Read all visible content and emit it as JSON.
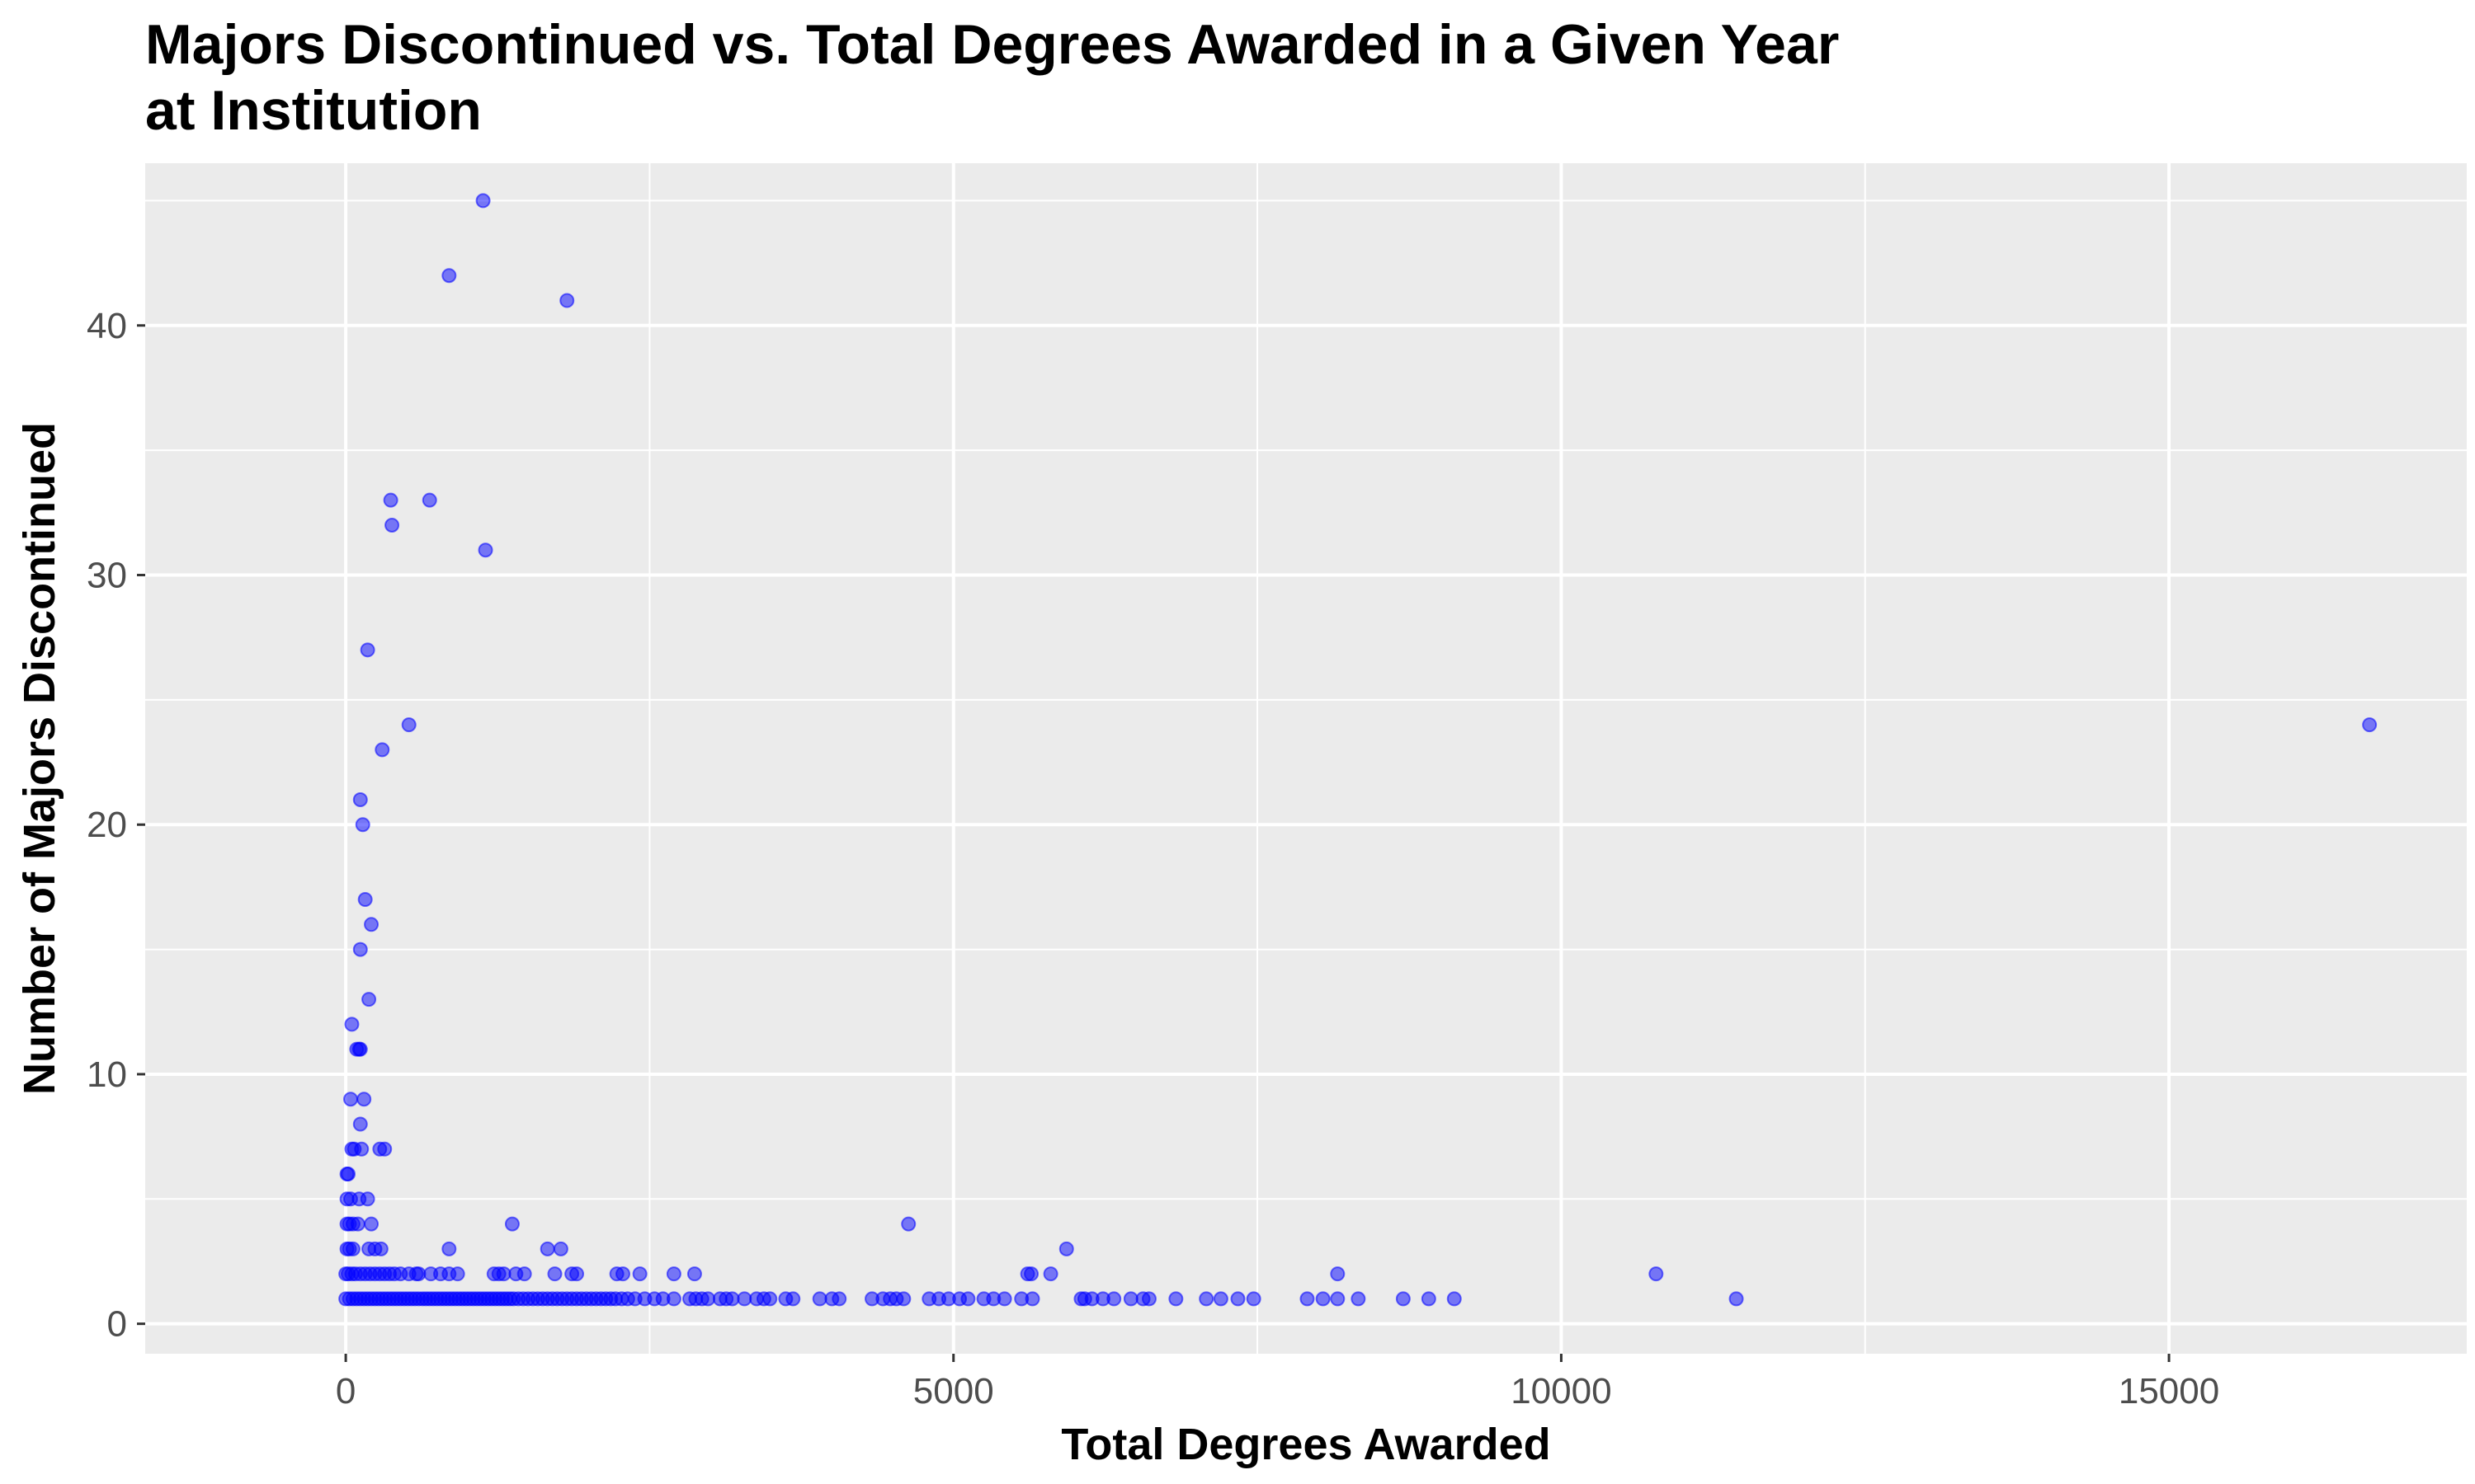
{
  "chart_data": {
    "type": "scatter",
    "title_lines": [
      "Majors Discontinued vs. Total Degrees Awarded in a Given Year",
      "at Institution"
    ],
    "xlabel": "Total Degrees Awarded",
    "ylabel": "Number of Majors Discontinued",
    "xlim": [
      -1650,
      17450
    ],
    "ylim": [
      -1.2,
      46.5
    ],
    "x_ticks": [
      0,
      5000,
      10000,
      15000
    ],
    "x_tick_labels": [
      "0",
      "5000",
      "10000",
      "15000"
    ],
    "y_ticks": [
      0,
      10,
      20,
      30,
      40
    ],
    "y_tick_labels": [
      "0",
      "10",
      "20",
      "30",
      "40"
    ],
    "grid": true,
    "legend": "none",
    "colors": {
      "point": "#0000ff",
      "panel": "#ebebeb",
      "grid": "#ffffff"
    },
    "points": [
      [
        1130,
        45
      ],
      [
        850,
        42
      ],
      [
        1820,
        41
      ],
      [
        370,
        33
      ],
      [
        690,
        33
      ],
      [
        380,
        32
      ],
      [
        1150,
        31
      ],
      [
        180,
        27
      ],
      [
        520,
        24
      ],
      [
        16650,
        24
      ],
      [
        300,
        23
      ],
      [
        120,
        21
      ],
      [
        140,
        20
      ],
      [
        160,
        17
      ],
      [
        210,
        16
      ],
      [
        120,
        15
      ],
      [
        190,
        13
      ],
      [
        50,
        12
      ],
      [
        90,
        11
      ],
      [
        110,
        11
      ],
      [
        120,
        11
      ],
      [
        40,
        9
      ],
      [
        150,
        9
      ],
      [
        120,
        8
      ],
      [
        50,
        7
      ],
      [
        70,
        7
      ],
      [
        130,
        7
      ],
      [
        280,
        7
      ],
      [
        320,
        7
      ],
      [
        10,
        6
      ],
      [
        20,
        6
      ],
      [
        10,
        5
      ],
      [
        40,
        5
      ],
      [
        110,
        5
      ],
      [
        180,
        5
      ],
      [
        10,
        4
      ],
      [
        30,
        4
      ],
      [
        60,
        4
      ],
      [
        100,
        4
      ],
      [
        210,
        4
      ],
      [
        1370,
        4
      ],
      [
        4630,
        4
      ],
      [
        10,
        3
      ],
      [
        30,
        3
      ],
      [
        60,
        3
      ],
      [
        190,
        3
      ],
      [
        240,
        3
      ],
      [
        290,
        3
      ],
      [
        850,
        3
      ],
      [
        1660,
        3
      ],
      [
        1770,
        3
      ],
      [
        5930,
        3
      ],
      [
        0,
        2
      ],
      [
        20,
        2
      ],
      [
        50,
        2
      ],
      [
        80,
        2
      ],
      [
        120,
        2
      ],
      [
        160,
        2
      ],
      [
        200,
        2
      ],
      [
        240,
        2
      ],
      [
        280,
        2
      ],
      [
        320,
        2
      ],
      [
        360,
        2
      ],
      [
        400,
        2
      ],
      [
        450,
        2
      ],
      [
        520,
        2
      ],
      [
        580,
        2
      ],
      [
        600,
        2
      ],
      [
        700,
        2
      ],
      [
        780,
        2
      ],
      [
        850,
        2
      ],
      [
        920,
        2
      ],
      [
        1220,
        2
      ],
      [
        1260,
        2
      ],
      [
        1300,
        2
      ],
      [
        1400,
        2
      ],
      [
        1470,
        2
      ],
      [
        1720,
        2
      ],
      [
        1860,
        2
      ],
      [
        1900,
        2
      ],
      [
        2230,
        2
      ],
      [
        2280,
        2
      ],
      [
        2420,
        2
      ],
      [
        2700,
        2
      ],
      [
        2870,
        2
      ],
      [
        5610,
        2
      ],
      [
        5640,
        2
      ],
      [
        5800,
        2
      ],
      [
        8160,
        2
      ],
      [
        10780,
        2
      ],
      [
        0,
        1
      ],
      [
        30,
        1
      ],
      [
        60,
        1
      ],
      [
        90,
        1
      ],
      [
        120,
        1
      ],
      [
        150,
        1
      ],
      [
        180,
        1
      ],
      [
        210,
        1
      ],
      [
        240,
        1
      ],
      [
        270,
        1
      ],
      [
        300,
        1
      ],
      [
        330,
        1
      ],
      [
        360,
        1
      ],
      [
        390,
        1
      ],
      [
        420,
        1
      ],
      [
        450,
        1
      ],
      [
        480,
        1
      ],
      [
        510,
        1
      ],
      [
        540,
        1
      ],
      [
        570,
        1
      ],
      [
        600,
        1
      ],
      [
        630,
        1
      ],
      [
        660,
        1
      ],
      [
        690,
        1
      ],
      [
        720,
        1
      ],
      [
        750,
        1
      ],
      [
        780,
        1
      ],
      [
        810,
        1
      ],
      [
        840,
        1
      ],
      [
        870,
        1
      ],
      [
        900,
        1
      ],
      [
        930,
        1
      ],
      [
        960,
        1
      ],
      [
        990,
        1
      ],
      [
        1020,
        1
      ],
      [
        1050,
        1
      ],
      [
        1080,
        1
      ],
      [
        1110,
        1
      ],
      [
        1140,
        1
      ],
      [
        1170,
        1
      ],
      [
        1200,
        1
      ],
      [
        1230,
        1
      ],
      [
        1260,
        1
      ],
      [
        1290,
        1
      ],
      [
        1320,
        1
      ],
      [
        1350,
        1
      ],
      [
        1380,
        1
      ],
      [
        1420,
        1
      ],
      [
        1460,
        1
      ],
      [
        1500,
        1
      ],
      [
        1540,
        1
      ],
      [
        1580,
        1
      ],
      [
        1620,
        1
      ],
      [
        1660,
        1
      ],
      [
        1700,
        1
      ],
      [
        1740,
        1
      ],
      [
        1780,
        1
      ],
      [
        1820,
        1
      ],
      [
        1860,
        1
      ],
      [
        1900,
        1
      ],
      [
        1940,
        1
      ],
      [
        1980,
        1
      ],
      [
        2020,
        1
      ],
      [
        2060,
        1
      ],
      [
        2100,
        1
      ],
      [
        2140,
        1
      ],
      [
        2180,
        1
      ],
      [
        2220,
        1
      ],
      [
        2270,
        1
      ],
      [
        2320,
        1
      ],
      [
        2380,
        1
      ],
      [
        2460,
        1
      ],
      [
        2540,
        1
      ],
      [
        2610,
        1
      ],
      [
        2700,
        1
      ],
      [
        2830,
        1
      ],
      [
        2880,
        1
      ],
      [
        2930,
        1
      ],
      [
        2980,
        1
      ],
      [
        3080,
        1
      ],
      [
        3130,
        1
      ],
      [
        3180,
        1
      ],
      [
        3280,
        1
      ],
      [
        3380,
        1
      ],
      [
        3440,
        1
      ],
      [
        3490,
        1
      ],
      [
        3620,
        1
      ],
      [
        3680,
        1
      ],
      [
        3900,
        1
      ],
      [
        4000,
        1
      ],
      [
        4060,
        1
      ],
      [
        4330,
        1
      ],
      [
        4420,
        1
      ],
      [
        4480,
        1
      ],
      [
        4530,
        1
      ],
      [
        4590,
        1
      ],
      [
        4800,
        1
      ],
      [
        4880,
        1
      ],
      [
        4960,
        1
      ],
      [
        5050,
        1
      ],
      [
        5120,
        1
      ],
      [
        5250,
        1
      ],
      [
        5330,
        1
      ],
      [
        5420,
        1
      ],
      [
        5560,
        1
      ],
      [
        5650,
        1
      ],
      [
        6050,
        1
      ],
      [
        6080,
        1
      ],
      [
        6140,
        1
      ],
      [
        6230,
        1
      ],
      [
        6320,
        1
      ],
      [
        6460,
        1
      ],
      [
        6560,
        1
      ],
      [
        6610,
        1
      ],
      [
        6830,
        1
      ],
      [
        7080,
        1
      ],
      [
        7200,
        1
      ],
      [
        7340,
        1
      ],
      [
        7470,
        1
      ],
      [
        7910,
        1
      ],
      [
        8040,
        1
      ],
      [
        8160,
        1
      ],
      [
        8330,
        1
      ],
      [
        8700,
        1
      ],
      [
        8910,
        1
      ],
      [
        9120,
        1
      ],
      [
        11440,
        1
      ]
    ]
  }
}
